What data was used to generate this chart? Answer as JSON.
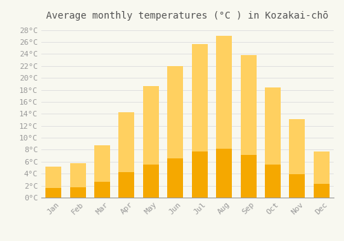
{
  "title": "Average monthly temperatures (°C ) in Kozakai-chō",
  "months": [
    "Jan",
    "Feb",
    "Mar",
    "Apr",
    "May",
    "Jun",
    "Jul",
    "Aug",
    "Sep",
    "Oct",
    "Nov",
    "Dec"
  ],
  "values": [
    5.2,
    5.8,
    8.8,
    14.3,
    18.6,
    22.0,
    25.7,
    27.1,
    23.8,
    18.4,
    13.1,
    7.7
  ],
  "bar_color_bottom": "#F5A800",
  "bar_color_top": "#FFD060",
  "bar_edge_color": "#E09000",
  "background_color": "#F8F8F0",
  "plot_bg_color": "#F8F8F0",
  "grid_color": "#DDDDDD",
  "ylim": [
    0,
    29
  ],
  "yticks": [
    0,
    2,
    4,
    6,
    8,
    10,
    12,
    14,
    16,
    18,
    20,
    22,
    24,
    26,
    28
  ],
  "title_fontsize": 10,
  "tick_fontsize": 8,
  "title_color": "#555555",
  "tick_color": "#999999",
  "bar_width": 0.65
}
